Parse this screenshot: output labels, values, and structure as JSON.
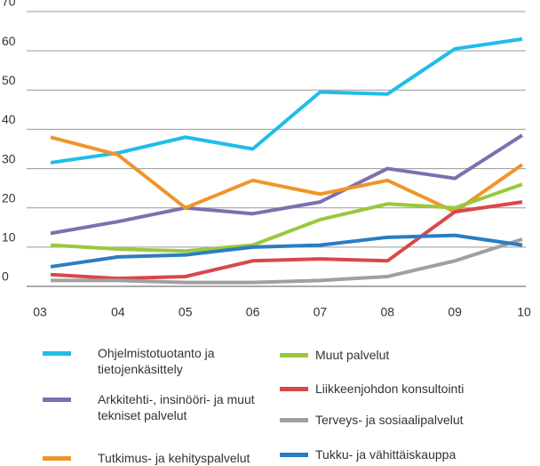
{
  "chart_data": {
    "type": "line",
    "categories": [
      "03",
      "04",
      "05",
      "06",
      "07",
      "08",
      "09",
      "10"
    ],
    "ylim": [
      0,
      70
    ],
    "yticks": [
      0,
      10,
      20,
      30,
      40,
      50,
      60,
      70
    ],
    "grid": true,
    "series": [
      {
        "name": "Ohjelmistotuotanto ja tietojenkäsittely",
        "color": "#1fbde8",
        "values": [
          31.5,
          34,
          38,
          35,
          49.5,
          49,
          60.5,
          63
        ]
      },
      {
        "name": "Arkkitehti-, insinööri- ja muut tekniset palvelut",
        "color": "#7f6fae",
        "values": [
          13.5,
          16.5,
          20,
          18.5,
          21.5,
          30,
          27.5,
          38.5
        ]
      },
      {
        "name": "Tutkimus- ja kehityspalvelut",
        "color": "#f0952a",
        "values": [
          38,
          33.5,
          20,
          27,
          23.5,
          27,
          19,
          31
        ]
      },
      {
        "name": "Muut palvelut",
        "color": "#98c93c",
        "values": [
          10.5,
          9.5,
          9,
          10.5,
          17,
          21,
          20,
          26
        ]
      },
      {
        "name": "Liikkeenjohdon konsultointi",
        "color": "#d9474a",
        "values": [
          3,
          2,
          2.5,
          6.5,
          7,
          6.5,
          19,
          21.5
        ]
      },
      {
        "name": "Terveys- ja sosiaalipalvelut",
        "color": "#a0a0a0",
        "values": [
          1.5,
          1.5,
          1,
          1,
          1.5,
          2.5,
          6.5,
          12
        ]
      },
      {
        "name": "Tukku- ja vähittäiskauppa",
        "color": "#2a7dc2",
        "values": [
          5,
          7.5,
          8,
          10,
          10.5,
          12.5,
          13,
          10.5
        ]
      }
    ]
  }
}
